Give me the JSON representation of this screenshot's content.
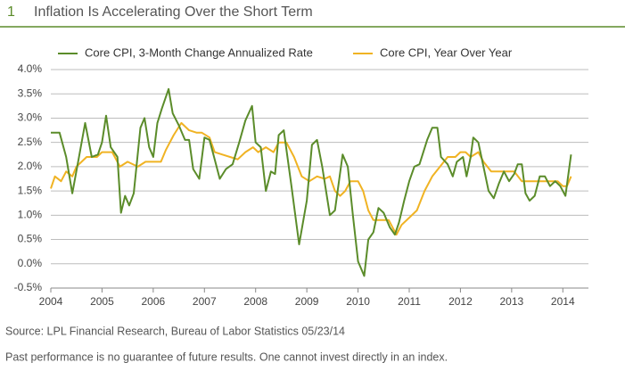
{
  "chart_data": {
    "type": "line",
    "number": "1",
    "title": "Inflation Is Accelerating Over the Short Term",
    "source": "Source: LPL Financial Research, Bureau of Labor Statistics   05/23/14",
    "note": "Past performance is no guarantee of future results. One cannot invest directly in an index.",
    "xlim": [
      2004,
      2014.5
    ],
    "xticks": [
      2004,
      2005,
      2006,
      2007,
      2008,
      2009,
      2010,
      2011,
      2012,
      2013,
      2014
    ],
    "ylim": [
      -0.5,
      4
    ],
    "yticks": [
      {
        "value": -0.5,
        "label": "-0.5%"
      },
      {
        "value": 0,
        "label": "0.0%"
      },
      {
        "value": 0.5,
        "label": "0.5%"
      },
      {
        "value": 1,
        "label": "1.0%"
      },
      {
        "value": 1.5,
        "label": "1.5%"
      },
      {
        "value": 2,
        "label": "2.0%"
      },
      {
        "value": 2.5,
        "label": "2.5%"
      },
      {
        "value": 3,
        "label": "3.0%"
      },
      {
        "value": 3.5,
        "label": "3.5%"
      },
      {
        "value": 4,
        "label": "4.0%"
      }
    ],
    "grid": true,
    "series": [
      {
        "name": "Core CPI, 3-Month Change Annualized Rate",
        "color": "#5b8c2a",
        "x": [
          2004.0,
          2004.17,
          2004.3,
          2004.42,
          2004.55,
          2004.67,
          2004.8,
          2004.92,
          2005.0,
          2005.08,
          2005.17,
          2005.3,
          2005.37,
          2005.45,
          2005.53,
          2005.62,
          2005.75,
          2005.83,
          2005.92,
          2006.0,
          2006.08,
          2006.17,
          2006.3,
          2006.38,
          2006.5,
          2006.62,
          2006.7,
          2006.78,
          2006.9,
          2007.0,
          2007.1,
          2007.2,
          2007.3,
          2007.42,
          2007.55,
          2007.68,
          2007.8,
          2007.93,
          2008.0,
          2008.1,
          2008.2,
          2008.3,
          2008.38,
          2008.45,
          2008.55,
          2008.7,
          2008.85,
          2009.0,
          2009.1,
          2009.2,
          2009.3,
          2009.45,
          2009.55,
          2009.7,
          2009.8,
          2009.9,
          2010.0,
          2010.12,
          2010.2,
          2010.3,
          2010.4,
          2010.5,
          2010.62,
          2010.72,
          2010.8,
          2010.9,
          2011.0,
          2011.1,
          2011.2,
          2011.35,
          2011.45,
          2011.55,
          2011.62,
          2011.75,
          2011.85,
          2011.93,
          2012.05,
          2012.12,
          2012.2,
          2012.25,
          2012.35,
          2012.45,
          2012.55,
          2012.65,
          2012.75,
          2012.85,
          2012.95,
          2013.05,
          2013.12,
          2013.2,
          2013.27,
          2013.35,
          2013.45,
          2013.55,
          2013.65,
          2013.75,
          2013.85,
          2013.95,
          2014.05,
          2014.16
        ],
        "values": [
          2.7,
          2.7,
          2.2,
          1.45,
          2.2,
          2.9,
          2.2,
          2.25,
          2.5,
          3.05,
          2.4,
          2.2,
          1.05,
          1.4,
          1.2,
          1.45,
          2.8,
          3.0,
          2.4,
          2.2,
          2.9,
          3.2,
          3.6,
          3.1,
          2.85,
          2.55,
          2.55,
          1.95,
          1.75,
          2.6,
          2.55,
          2.15,
          1.75,
          1.95,
          2.05,
          2.5,
          2.95,
          3.25,
          2.5,
          2.4,
          1.5,
          1.9,
          1.85,
          2.65,
          2.75,
          1.6,
          0.4,
          1.3,
          2.45,
          2.55,
          2.0,
          1.0,
          1.1,
          2.25,
          2.0,
          1.0,
          0.05,
          -0.25,
          0.5,
          0.65,
          1.15,
          1.05,
          0.75,
          0.6,
          0.85,
          1.3,
          1.7,
          2.0,
          2.05,
          2.55,
          2.8,
          2.8,
          2.2,
          2.05,
          1.8,
          2.1,
          2.2,
          1.8,
          2.2,
          2.6,
          2.5,
          2.0,
          1.5,
          1.35,
          1.65,
          1.9,
          1.7,
          1.85,
          2.05,
          2.05,
          1.45,
          1.3,
          1.4,
          1.8,
          1.8,
          1.6,
          1.7,
          1.6,
          1.4,
          2.25
        ]
      },
      {
        "name": "Core CPI, Year Over Year",
        "color": "#f0b323",
        "x": [
          2004.0,
          2004.08,
          2004.2,
          2004.3,
          2004.42,
          2004.5,
          2004.7,
          2004.9,
          2005.0,
          2005.2,
          2005.35,
          2005.5,
          2005.7,
          2005.85,
          2006.0,
          2006.15,
          2006.25,
          2006.4,
          2006.55,
          2006.7,
          2006.85,
          2006.95,
          2007.1,
          2007.2,
          2007.35,
          2007.5,
          2007.65,
          2007.8,
          2007.95,
          2008.05,
          2008.2,
          2008.35,
          2008.45,
          2008.6,
          2008.75,
          2008.9,
          2009.05,
          2009.2,
          2009.35,
          2009.45,
          2009.55,
          2009.65,
          2009.75,
          2009.85,
          2010.0,
          2010.1,
          2010.2,
          2010.3,
          2010.45,
          2010.6,
          2010.75,
          2010.85,
          2011.0,
          2011.15,
          2011.3,
          2011.45,
          2011.6,
          2011.75,
          2011.9,
          2012.0,
          2012.1,
          2012.2,
          2012.35,
          2012.45,
          2012.6,
          2012.75,
          2012.9,
          2013.05,
          2013.2,
          2013.35,
          2013.5,
          2013.6,
          2013.75,
          2013.9,
          2014.0,
          2014.08,
          2014.16
        ],
        "values": [
          1.55,
          1.8,
          1.7,
          1.9,
          1.8,
          2.0,
          2.2,
          2.2,
          2.3,
          2.3,
          2.0,
          2.1,
          2.0,
          2.1,
          2.1,
          2.1,
          2.35,
          2.65,
          2.9,
          2.75,
          2.7,
          2.7,
          2.6,
          2.3,
          2.25,
          2.2,
          2.15,
          2.3,
          2.4,
          2.3,
          2.4,
          2.3,
          2.5,
          2.5,
          2.2,
          1.8,
          1.7,
          1.8,
          1.75,
          1.8,
          1.5,
          1.4,
          1.5,
          1.7,
          1.7,
          1.5,
          1.1,
          0.9,
          0.9,
          0.9,
          0.6,
          0.8,
          0.95,
          1.1,
          1.5,
          1.8,
          2.0,
          2.2,
          2.2,
          2.3,
          2.3,
          2.2,
          2.3,
          2.1,
          1.9,
          1.9,
          1.9,
          1.9,
          1.7,
          1.7,
          1.7,
          1.7,
          1.7,
          1.7,
          1.6,
          1.6,
          1.8
        ]
      }
    ]
  }
}
